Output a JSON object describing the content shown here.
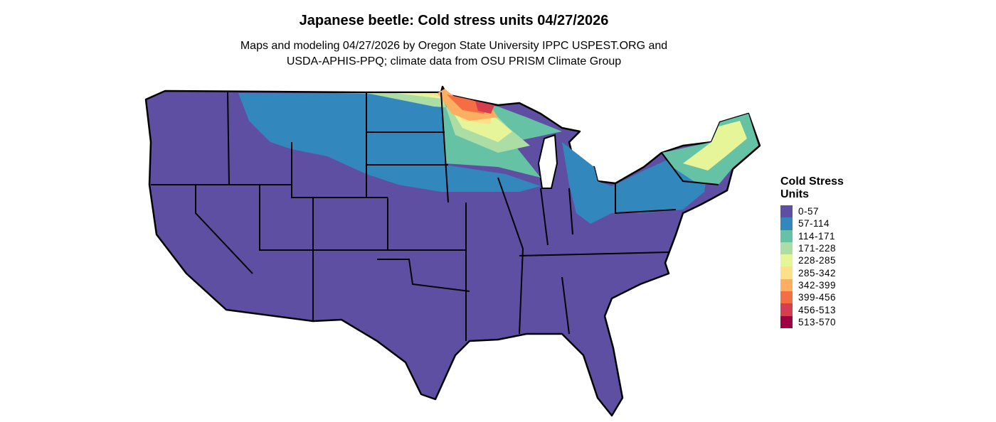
{
  "title": "Japanese beetle: Cold stress units 04/27/2026",
  "subtitle_line1": "Maps and modeling 04/27/2026 by Oregon State University IPPC USPEST.ORG and",
  "subtitle_line2": "USDA-APHIS-PPQ; climate data from OSU PRISM Climate Group",
  "legend": {
    "title_line1": "Cold Stress",
    "title_line2": "Units",
    "items": [
      {
        "label": "0-57",
        "color": "#5E4FA2"
      },
      {
        "label": "57-114",
        "color": "#3288BD"
      },
      {
        "label": "114-171",
        "color": "#66C2A5"
      },
      {
        "label": "171-228",
        "color": "#ABDDA4"
      },
      {
        "label": "228-285",
        "color": "#E6F598"
      },
      {
        "label": "285-342",
        "color": "#FEE08B"
      },
      {
        "label": "342-399",
        "color": "#FDAE61"
      },
      {
        "label": "399-456",
        "color": "#F46D43"
      },
      {
        "label": "456-513",
        "color": "#D53E4F"
      },
      {
        "label": "513-570",
        "color": "#9E0142"
      }
    ]
  }
}
